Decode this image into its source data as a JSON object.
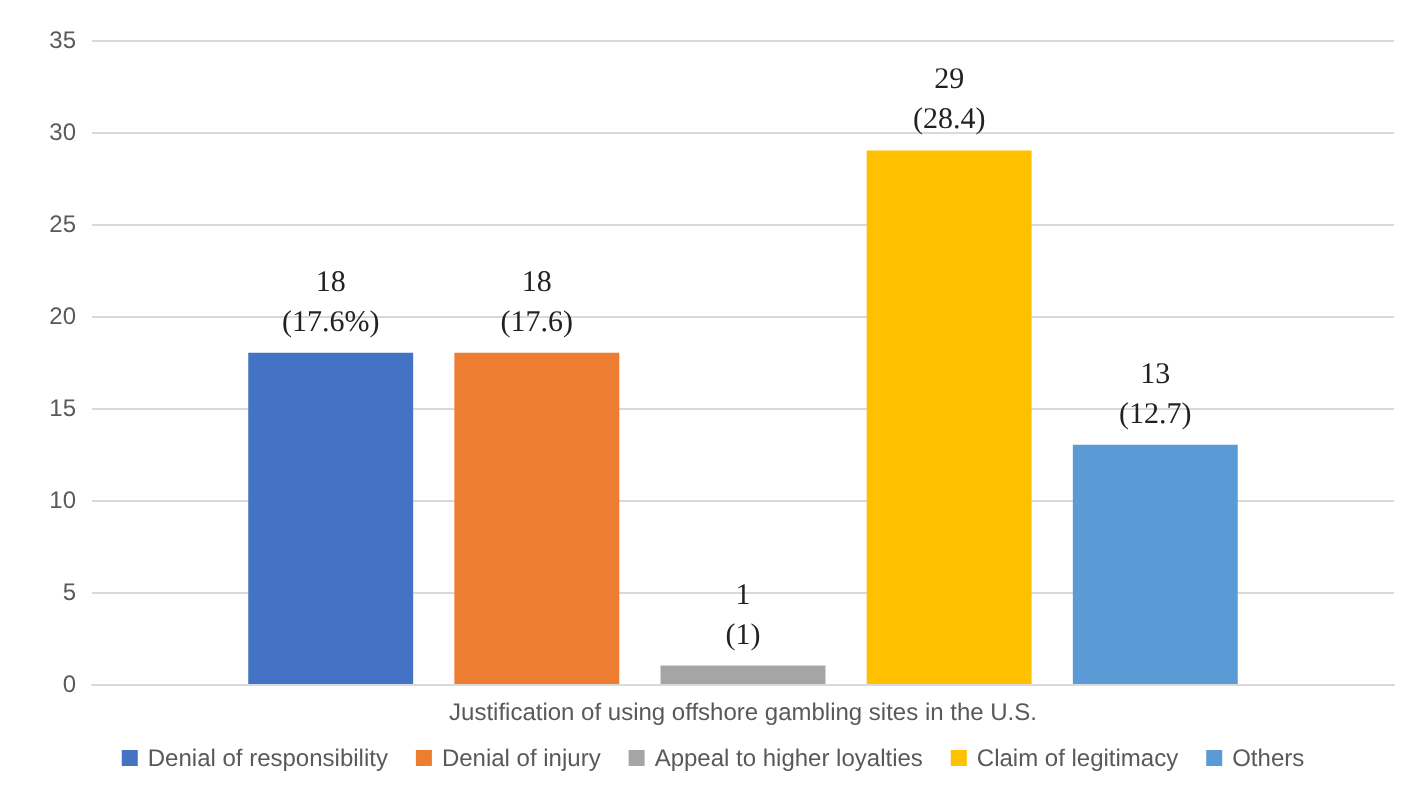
{
  "chart_data": {
    "type": "bar",
    "categories": [
      "Justification of using offshore gambling sites in the U.S."
    ],
    "series": [
      {
        "name": "Denial of responsibility",
        "color": "#4472c4",
        "values": [
          18
        ],
        "value_labels": [
          "18\n(17.6%)"
        ]
      },
      {
        "name": "Denial of injury",
        "color": "#ed7d31",
        "values": [
          18
        ],
        "value_labels": [
          "18\n(17.6)"
        ]
      },
      {
        "name": "Appeal to higher loyalties",
        "color": "#a5a5a5",
        "values": [
          1
        ],
        "value_labels": [
          "1\n(1)"
        ]
      },
      {
        "name": "Claim of legitimacy",
        "color": "#ffc000",
        "values": [
          29
        ],
        "value_labels": [
          "29\n(28.4)"
        ]
      },
      {
        "name": "Others",
        "color": "#5b9bd5",
        "values": [
          13
        ],
        "value_labels": [
          "13\n(12.7)"
        ]
      }
    ],
    "ylim": [
      0,
      35
    ],
    "yticks": [
      0,
      5,
      10,
      15,
      20,
      25,
      30,
      35
    ],
    "grid": "y",
    "legend": "bottom"
  }
}
